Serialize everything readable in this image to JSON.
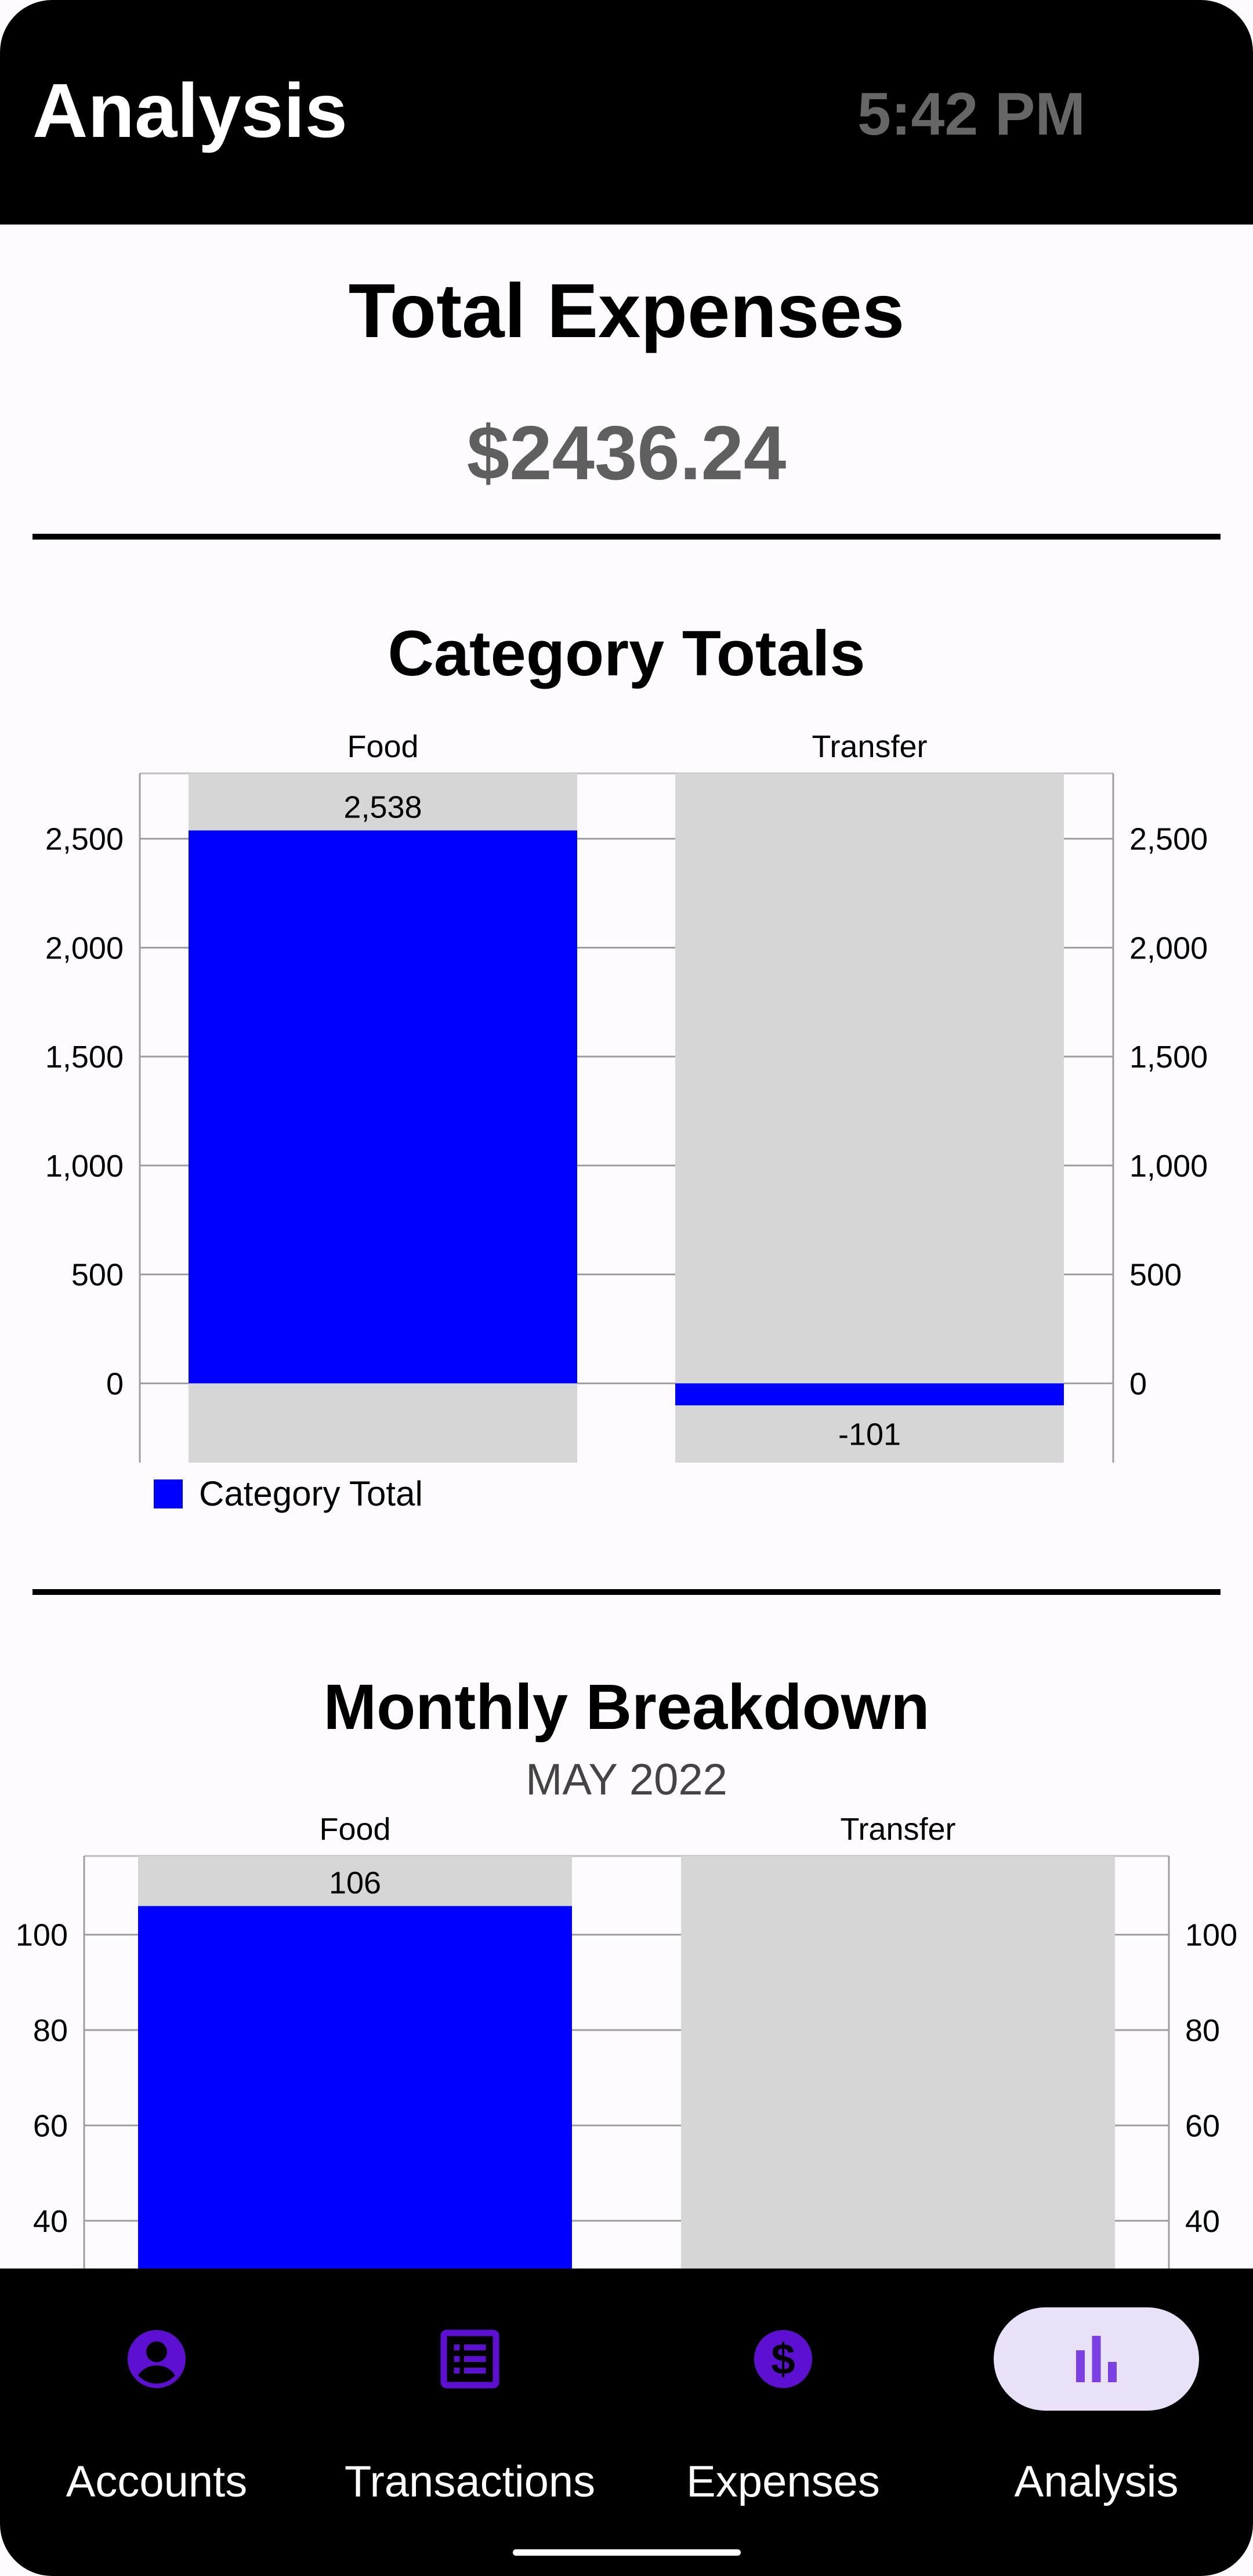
{
  "app_bar": {
    "title": "Analysis",
    "time": "5:42 PM"
  },
  "total": {
    "title": "Total Expenses",
    "value": "$2436.24"
  },
  "category_section": {
    "title": "Category Totals",
    "legend_label": "Category Total"
  },
  "monthly_section": {
    "title": "Monthly Breakdown",
    "month": "MAY 2022"
  },
  "chart_data": [
    {
      "type": "bar",
      "title": "Category Totals",
      "categories": [
        "Food",
        "Transfer"
      ],
      "series": [
        {
          "name": "Category Total",
          "values": [
            2538,
            -101
          ]
        }
      ],
      "value_labels": [
        "2,538",
        "-101"
      ],
      "yticks": [
        0,
        500,
        1000,
        1500,
        2000,
        2500
      ],
      "ytick_labels": [
        "0",
        "500",
        "1,000",
        "1,500",
        "2,000",
        "2,500"
      ],
      "ylim": [
        -364,
        2800
      ],
      "grid": true,
      "legend": "bottom-left",
      "colors": {
        "bar": "#0000ff",
        "track": "#d6d6d6",
        "grid": "#9e9e9e"
      }
    },
    {
      "type": "bar",
      "title": "Monthly Breakdown",
      "subtitle": "MAY 2022",
      "categories": [
        "Food",
        "Transfer"
      ],
      "series": [
        {
          "values": [
            106,
            null
          ]
        }
      ],
      "value_labels": [
        "106",
        ""
      ],
      "yticks": [
        40,
        60,
        80,
        100
      ],
      "ytick_labels": [
        "40",
        "60",
        "80",
        "100"
      ],
      "ylim": [
        30,
        116.5
      ],
      "grid": true,
      "colors": {
        "bar": "#0000ff",
        "track": "#d6d6d6",
        "grid": "#9e9e9e"
      }
    }
  ],
  "bottom_nav": {
    "items": [
      {
        "label": "Accounts",
        "icon": "account-circle-icon",
        "active": false
      },
      {
        "label": "Transactions",
        "icon": "list-icon",
        "active": false
      },
      {
        "label": "Expenses",
        "icon": "dollar-circle-icon",
        "active": false
      },
      {
        "label": "Analysis",
        "icon": "bar-chart-icon",
        "active": true
      }
    ],
    "icon_color": "#5d10d1",
    "active_icon_color": "#7b3fe4",
    "active_pill_color": "#e9e1f7"
  }
}
